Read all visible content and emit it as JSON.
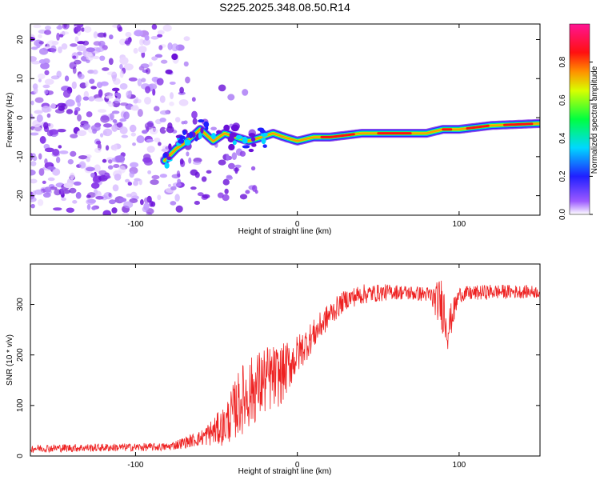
{
  "title": "S225.2025.348.08.50.R14",
  "chart_data": [
    {
      "type": "heatmap",
      "xlabel": "Height of straight line (km)",
      "ylabel": "Frequency (Hz)",
      "xlim": [
        -165,
        150
      ],
      "ylim": [
        -25,
        24
      ],
      "x_ticks": [
        -100,
        0,
        100
      ],
      "x_tick_labels": [
        "-100",
        "0",
        "100"
      ],
      "y_ticks": [
        -20,
        -10,
        0,
        10,
        20
      ],
      "y_tick_labels": [
        "-20",
        "-10",
        "0",
        "10",
        "20"
      ],
      "ridge": {
        "x": [
          -82,
          -75,
          -68,
          -60,
          -52,
          -45,
          -38,
          -30,
          -22,
          -15,
          -8,
          0,
          10,
          20,
          40,
          60,
          80,
          90,
          100,
          120,
          150
        ],
        "y": [
          -11,
          -8,
          -6,
          -3,
          -6,
          -4,
          -5,
          -6,
          -5,
          -4,
          -5,
          -6,
          -5,
          -5,
          -4,
          -4,
          -4,
          -3,
          -3,
          -2,
          -1.5
        ]
      },
      "noise_x_range": [
        -165,
        -80
      ],
      "colorbar": {
        "label": "Normalized spectral amplitude",
        "range": [
          0,
          1
        ],
        "ticks": [
          0.0,
          0.2,
          0.4,
          0.6,
          0.8
        ],
        "tick_labels": [
          "0.0",
          "0.2",
          "0.4",
          "0.6",
          "0.8"
        ],
        "colors": [
          "#e8e0ff",
          "#8a2be2",
          "#0000ff",
          "#00ffff",
          "#00ff00",
          "#ffff00",
          "#ff8000",
          "#ff0000",
          "#ff1493"
        ]
      }
    },
    {
      "type": "line",
      "xlabel": "Height of straight line (km)",
      "ylabel": "SNR (10 * v/v)",
      "xlim": [
        -165,
        150
      ],
      "ylim": [
        0,
        380
      ],
      "x_ticks": [
        -100,
        0,
        100
      ],
      "x_tick_labels": [
        "-100",
        "0",
        "100"
      ],
      "y_ticks": [
        0,
        100,
        200,
        300
      ],
      "y_tick_labels": [
        "0",
        "100",
        "200",
        "300"
      ],
      "color": "#ee2222",
      "trend": {
        "x": [
          -165,
          -80,
          -60,
          -45,
          -35,
          -20,
          -10,
          0,
          10,
          20,
          30,
          40,
          60,
          80,
          85,
          90,
          93,
          100,
          120,
          150
        ],
        "y": [
          15,
          18,
          35,
          60,
          110,
          150,
          160,
          200,
          240,
          280,
          310,
          320,
          325,
          320,
          310,
          300,
          250,
          320,
          325,
          325
        ],
        "noise_amp": [
          8,
          8,
          15,
          40,
          70,
          70,
          60,
          40,
          30,
          25,
          20,
          20,
          15,
          15,
          30,
          60,
          40,
          15,
          15,
          12
        ]
      }
    }
  ]
}
